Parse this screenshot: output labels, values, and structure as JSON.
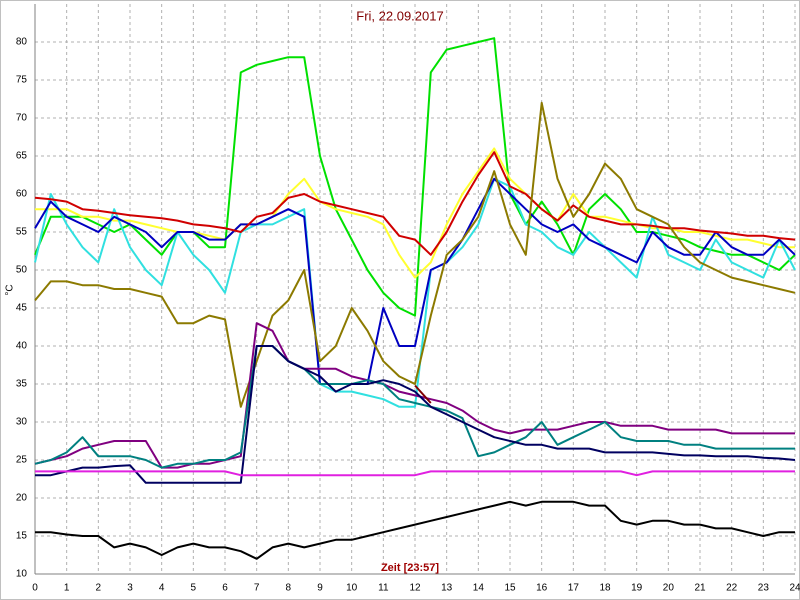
{
  "chart_data": {
    "type": "line",
    "title": "Fri, 22.09.2017",
    "x_label": "Zeit [23:57]",
    "y_label": "°C",
    "grid": true,
    "xlim": [
      0,
      24
    ],
    "xticks": [
      0,
      1,
      2,
      3,
      4,
      5,
      6,
      7,
      8,
      9,
      10,
      11,
      12,
      13,
      14,
      15,
      16,
      17,
      18,
      19,
      20,
      21,
      22,
      23,
      24
    ],
    "ylim": [
      10,
      85
    ],
    "yticks": [
      10,
      15,
      20,
      25,
      30,
      35,
      40,
      45,
      50,
      55,
      60,
      65,
      70,
      75,
      80
    ],
    "x": [
      0,
      0.5,
      1,
      1.5,
      2,
      2.5,
      3,
      3.5,
      4,
      4.5,
      5,
      5.5,
      6,
      6.5,
      7,
      7.5,
      8,
      8.5,
      9,
      9.5,
      10,
      10.5,
      11,
      11.5,
      12,
      12.5,
      13,
      13.5,
      14,
      14.5,
      15,
      15.5,
      16,
      16.5,
      17,
      17.5,
      18,
      18.5,
      19,
      19.5,
      20,
      20.5,
      21,
      21.5,
      22,
      22.5,
      23,
      23.5,
      24
    ],
    "series": [
      {
        "color": "#00e000",
        "values": [
          52,
          57,
          57,
          57,
          56,
          55,
          56,
          54,
          52,
          55,
          55,
          53,
          53,
          76,
          77,
          77.5,
          78,
          78,
          65,
          58,
          54,
          50,
          47,
          45,
          44,
          76,
          79,
          79.5,
          80,
          80.5,
          60,
          56,
          59,
          56,
          52,
          58,
          60,
          58,
          55,
          55,
          54.5,
          54,
          53,
          52.5,
          52,
          52,
          51,
          50,
          52
        ]
      },
      {
        "color": "#ffff30",
        "values": [
          58,
          58,
          58,
          57,
          57,
          56.5,
          56.5,
          56,
          55.5,
          55,
          55,
          54.5,
          54,
          56,
          56,
          57,
          60,
          62,
          59,
          58,
          57.5,
          57,
          56,
          52,
          49,
          51,
          56,
          60,
          63,
          66,
          62,
          60,
          58,
          56.5,
          60,
          57,
          57,
          56.5,
          56,
          55.5,
          55.5,
          55,
          55,
          54.5,
          54,
          54,
          53.5,
          53,
          53
        ]
      },
      {
        "color": "#30e0e0",
        "values": [
          51,
          60,
          56,
          53,
          51,
          58,
          53,
          50,
          48,
          55,
          52,
          50,
          47,
          55,
          56,
          56,
          57,
          58,
          35,
          34,
          34,
          33.5,
          33,
          32,
          32,
          50,
          51,
          53,
          56,
          62,
          61,
          56,
          55,
          53,
          52,
          55,
          53,
          51,
          49,
          57,
          52,
          51,
          50,
          54,
          51,
          50,
          49,
          54,
          50
        ]
      },
      {
        "color": "#0000c0",
        "values": [
          55.5,
          59,
          57,
          56,
          55,
          57,
          56,
          55,
          53,
          55,
          55,
          54,
          54,
          56,
          56,
          57,
          58,
          57,
          35,
          35,
          35,
          35,
          45,
          40,
          40,
          50,
          51,
          54,
          58,
          62,
          60,
          58,
          56,
          55,
          56,
          54,
          53,
          52,
          51,
          55,
          53,
          52,
          52,
          55,
          53,
          52,
          52,
          54,
          52
        ]
      },
      {
        "color": "#d00000",
        "values": [
          59.5,
          59.3,
          59,
          58,
          57.8,
          57.5,
          57.2,
          57,
          56.8,
          56.5,
          56,
          55.8,
          55.5,
          55,
          57,
          57.5,
          59.5,
          60,
          59,
          58.5,
          58,
          57.5,
          57,
          54.5,
          54,
          52,
          55,
          59,
          62.5,
          65.5,
          61,
          60,
          58,
          56.5,
          58.5,
          57,
          56.5,
          56,
          56,
          55.8,
          55.5,
          55.5,
          55.2,
          55,
          54.8,
          54.5,
          54.5,
          54.2,
          54
        ]
      },
      {
        "color": "#8c7a00",
        "values": [
          46,
          48.5,
          48.5,
          48,
          48,
          47.5,
          47.5,
          47,
          46.5,
          43,
          43,
          44,
          43.5,
          32,
          38,
          44,
          46,
          50,
          38,
          40,
          45,
          42,
          38,
          36,
          35,
          44,
          52,
          54,
          57,
          63,
          56,
          52,
          72,
          62,
          57,
          60,
          64,
          62,
          58,
          57,
          56,
          53,
          51,
          50,
          49,
          48.5,
          48,
          47.5,
          47
        ]
      },
      {
        "color": "#800080",
        "values": [
          24.5,
          25,
          25.5,
          26.5,
          27,
          27.5,
          27.5,
          27.5,
          24,
          24,
          24.5,
          24.5,
          25,
          25.5,
          43,
          42,
          38,
          37,
          37,
          37,
          36,
          35.5,
          35,
          34,
          33.5,
          33,
          32.5,
          31.5,
          30,
          29,
          28.5,
          29,
          29,
          29,
          29.5,
          30,
          30,
          29.5,
          29.5,
          29.5,
          29,
          29,
          29,
          29,
          28.5,
          28.5,
          28.5,
          28.5,
          28.5
        ]
      },
      {
        "color": "#008080",
        "values": [
          24.5,
          25,
          26,
          28,
          25.5,
          25.5,
          25.5,
          25,
          24,
          24.5,
          24.5,
          25,
          25,
          26,
          40,
          40,
          38,
          37,
          35,
          35,
          35,
          35.5,
          35,
          33,
          32.5,
          32,
          31.5,
          30.5,
          25.5,
          26,
          27,
          28,
          30,
          27,
          28,
          29,
          30,
          28,
          27.5,
          27.5,
          27.5,
          27,
          27,
          26.5,
          26.5,
          26.5,
          26.5,
          26.5,
          26.5
        ]
      },
      {
        "color": "#000060",
        "values": [
          23,
          23,
          23.5,
          24,
          24,
          24.2,
          24.3,
          22,
          22,
          22,
          22,
          22,
          22,
          22,
          40,
          40,
          38,
          37,
          36,
          34,
          35,
          35,
          35.5,
          35,
          34,
          32,
          31,
          30,
          29,
          28,
          27.5,
          27,
          27,
          26.5,
          26.5,
          26.5,
          26,
          26,
          26,
          26,
          25.8,
          25.6,
          25.6,
          25.5,
          25.5,
          25.5,
          25.3,
          25.2,
          25
        ]
      },
      {
        "color": "#e020e0",
        "values": [
          23.5,
          23.5,
          23.5,
          23.5,
          23.5,
          23.5,
          23.5,
          23.5,
          23.5,
          23.5,
          23.5,
          23.5,
          23.5,
          23,
          23,
          23,
          23,
          23,
          23,
          23,
          23,
          23,
          23,
          23,
          23,
          23.5,
          23.5,
          23.5,
          23.5,
          23.5,
          23.5,
          23.5,
          23.5,
          23.5,
          23.5,
          23.5,
          23.5,
          23.5,
          23,
          23.5,
          23.5,
          23.5,
          23.5,
          23.5,
          23.5,
          23.5,
          23.5,
          23.5,
          23.5
        ]
      },
      {
        "color": "#000000",
        "values": [
          15.5,
          15.5,
          15.2,
          15,
          15,
          13.5,
          14,
          13.5,
          12.5,
          13.5,
          14,
          13.5,
          13.5,
          13,
          12,
          13.5,
          14,
          13.5,
          14,
          14.5,
          14.5,
          15,
          15.5,
          16,
          16.5,
          17,
          17.5,
          18,
          18.5,
          19,
          19.5,
          19,
          19.5,
          19.5,
          19.5,
          19,
          19,
          17,
          16.5,
          17,
          17,
          16.5,
          16.5,
          16,
          16,
          15.5,
          15,
          15.5,
          15.5
        ]
      },
      {
        "color": "#800000",
        "values": [
          null,
          null,
          null,
          null,
          null,
          null,
          null,
          null,
          null,
          null,
          null,
          null,
          null,
          null,
          null,
          null,
          null,
          null,
          null,
          null,
          null,
          null,
          null,
          null,
          34.8,
          32.5,
          null,
          null,
          null,
          null,
          null,
          null,
          null,
          null,
          null,
          null,
          null,
          null,
          null,
          null,
          null,
          null,
          null,
          null,
          null,
          null,
          null,
          null,
          null
        ]
      }
    ]
  }
}
